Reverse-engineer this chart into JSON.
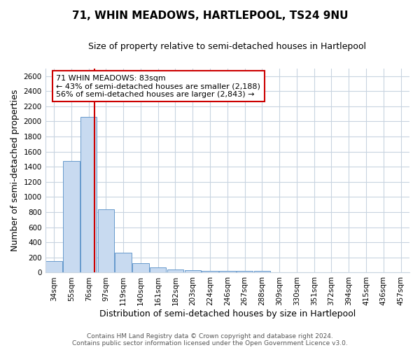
{
  "title": "71, WHIN MEADOWS, HARTLEPOOL, TS24 9NU",
  "subtitle": "Size of property relative to semi-detached houses in Hartlepool",
  "xlabel": "Distribution of semi-detached houses by size in Hartlepool",
  "ylabel": "Number of semi-detached properties",
  "categories": [
    "34sqm",
    "55sqm",
    "76sqm",
    "97sqm",
    "119sqm",
    "140sqm",
    "161sqm",
    "182sqm",
    "203sqm",
    "224sqm",
    "246sqm",
    "267sqm",
    "288sqm",
    "309sqm",
    "330sqm",
    "351sqm",
    "372sqm",
    "394sqm",
    "415sqm",
    "436sqm",
    "457sqm"
  ],
  "values": [
    150,
    1480,
    2060,
    840,
    260,
    120,
    70,
    45,
    30,
    25,
    25,
    25,
    25,
    0,
    0,
    0,
    0,
    0,
    0,
    0,
    0
  ],
  "bar_color": "#c8daf0",
  "bar_edge_color": "#6699cc",
  "property_label": "71 WHIN MEADOWS: 83sqm",
  "annotation_line1": "← 43% of semi-detached houses are smaller (2,188)",
  "annotation_line2": "56% of semi-detached houses are larger (2,843) →",
  "vline_color": "#cc0000",
  "vline_x_index": 2.33,
  "annotation_box_color": "#ffffff",
  "annotation_box_edge": "#cc0000",
  "ylim": [
    0,
    2700
  ],
  "yticks": [
    0,
    200,
    400,
    600,
    800,
    1000,
    1200,
    1400,
    1600,
    1800,
    2000,
    2200,
    2400,
    2600
  ],
  "footer_line1": "Contains HM Land Registry data © Crown copyright and database right 2024.",
  "footer_line2": "Contains public sector information licensed under the Open Government Licence v3.0.",
  "background_color": "#ffffff",
  "plot_background_color": "#ffffff",
  "grid_color": "#c8d4e0",
  "title_fontsize": 11,
  "subtitle_fontsize": 9,
  "axis_label_fontsize": 9,
  "tick_fontsize": 7.5,
  "annotation_fontsize": 8,
  "footer_fontsize": 6.5
}
